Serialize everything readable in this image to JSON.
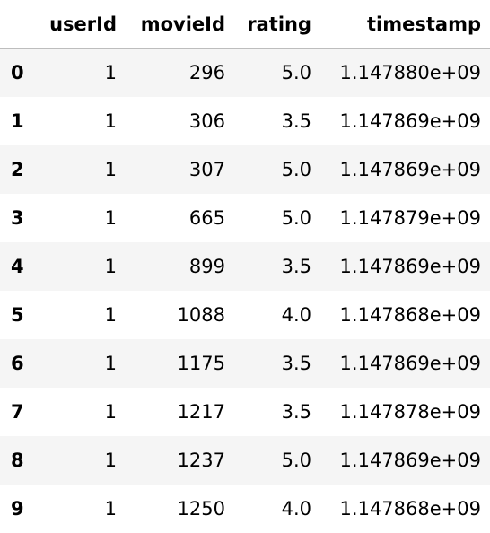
{
  "table": {
    "columns": [
      "userId",
      "movieId",
      "rating",
      "timestamp"
    ],
    "rows": [
      {
        "index": "0",
        "userId": "1",
        "movieId": "296",
        "rating": "5.0",
        "timestamp": "1.147880e+09"
      },
      {
        "index": "1",
        "userId": "1",
        "movieId": "306",
        "rating": "3.5",
        "timestamp": "1.147869e+09"
      },
      {
        "index": "2",
        "userId": "1",
        "movieId": "307",
        "rating": "5.0",
        "timestamp": "1.147869e+09"
      },
      {
        "index": "3",
        "userId": "1",
        "movieId": "665",
        "rating": "5.0",
        "timestamp": "1.147879e+09"
      },
      {
        "index": "4",
        "userId": "1",
        "movieId": "899",
        "rating": "3.5",
        "timestamp": "1.147869e+09"
      },
      {
        "index": "5",
        "userId": "1",
        "movieId": "1088",
        "rating": "4.0",
        "timestamp": "1.147868e+09"
      },
      {
        "index": "6",
        "userId": "1",
        "movieId": "1175",
        "rating": "3.5",
        "timestamp": "1.147869e+09"
      },
      {
        "index": "7",
        "userId": "1",
        "movieId": "1217",
        "rating": "3.5",
        "timestamp": "1.147878e+09"
      },
      {
        "index": "8",
        "userId": "1",
        "movieId": "1237",
        "rating": "5.0",
        "timestamp": "1.147869e+09"
      },
      {
        "index": "9",
        "userId": "1",
        "movieId": "1250",
        "rating": "4.0",
        "timestamp": "1.147868e+09"
      }
    ]
  }
}
